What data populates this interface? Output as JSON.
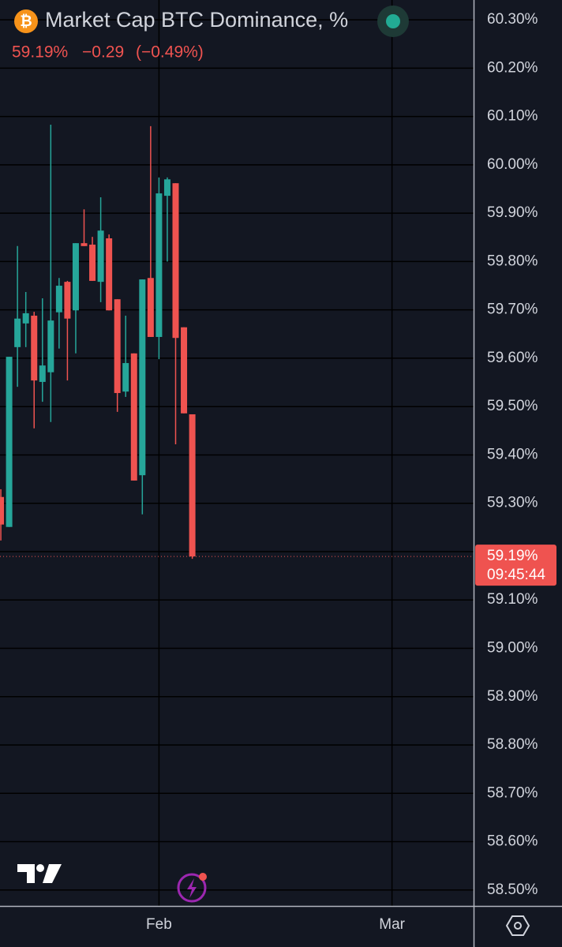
{
  "chart_data": {
    "type": "candlestick",
    "title": "Market Cap BTC Dominance, %",
    "change": "−0.29",
    "change_percent": "(−0.49%)",
    "last_value": 59.19,
    "last_value_label": "59.19%",
    "countdown": "09:45:44",
    "up_color": "#26a69a",
    "down_color": "#ef5350",
    "grid": true,
    "ylim": [
      58.467,
      60.341
    ],
    "yticks": [
      {
        "value": 58.5,
        "label": "58.50%"
      },
      {
        "value": 58.6,
        "label": "58.60%"
      },
      {
        "value": 58.7,
        "label": "58.70%"
      },
      {
        "value": 58.8,
        "label": "58.80%"
      },
      {
        "value": 58.9,
        "label": "58.90%"
      },
      {
        "value": 59.0,
        "label": "59.00%"
      },
      {
        "value": 59.1,
        "label": "59.10%"
      },
      {
        "value": 59.2,
        "label": "59.20%"
      },
      {
        "value": 59.3,
        "label": "59.30%"
      },
      {
        "value": 59.4,
        "label": "59.40%"
      },
      {
        "value": 59.5,
        "label": "59.50%"
      },
      {
        "value": 59.6,
        "label": "59.60%"
      },
      {
        "value": 59.7,
        "label": "59.70%"
      },
      {
        "value": 59.8,
        "label": "59.80%"
      },
      {
        "value": 59.9,
        "label": "59.90%"
      },
      {
        "value": 60.0,
        "label": "60.00%"
      },
      {
        "value": 60.1,
        "label": "60.10%"
      },
      {
        "value": 60.2,
        "label": "60.20%"
      },
      {
        "value": 60.3,
        "label": "60.30%"
      }
    ],
    "xlim": [
      -0.1,
      56.8
    ],
    "xticks": [
      {
        "value": 19,
        "label": "Feb"
      },
      {
        "value": 47,
        "label": "Mar"
      }
    ],
    "open": [
      59.313,
      59.251,
      59.623,
      59.672,
      59.688,
      59.551,
      59.571,
      59.695,
      59.758,
      59.699,
      59.838,
      59.835,
      59.758,
      59.848,
      59.722,
      59.531,
      59.61,
      59.358,
      59.766,
      59.644,
      59.936,
      59.962,
      59.664,
      59.484
    ],
    "high": [
      59.329,
      59.603,
      59.832,
      59.737,
      59.696,
      59.724,
      60.083,
      59.766,
      59.76,
      59.838,
      59.908,
      59.851,
      59.933,
      59.856,
      59.722,
      59.688,
      59.61,
      59.763,
      60.08,
      59.974,
      59.974,
      59.962,
      59.664,
      59.484
    ],
    "low": [
      59.223,
      59.251,
      59.541,
      59.623,
      59.455,
      59.51,
      59.468,
      59.62,
      59.554,
      59.61,
      59.832,
      59.76,
      59.716,
      59.699,
      59.489,
      59.52,
      59.347,
      59.277,
      59.644,
      59.598,
      59.8,
      59.422,
      59.486,
      59.185
    ],
    "close": [
      59.256,
      59.603,
      59.682,
      59.693,
      59.554,
      59.585,
      59.678,
      59.75,
      59.682,
      59.838,
      59.832,
      59.76,
      59.864,
      59.699,
      59.528,
      59.59,
      59.347,
      59.763,
      59.644,
      59.941,
      59.97,
      59.642,
      59.486,
      59.19
    ]
  }
}
